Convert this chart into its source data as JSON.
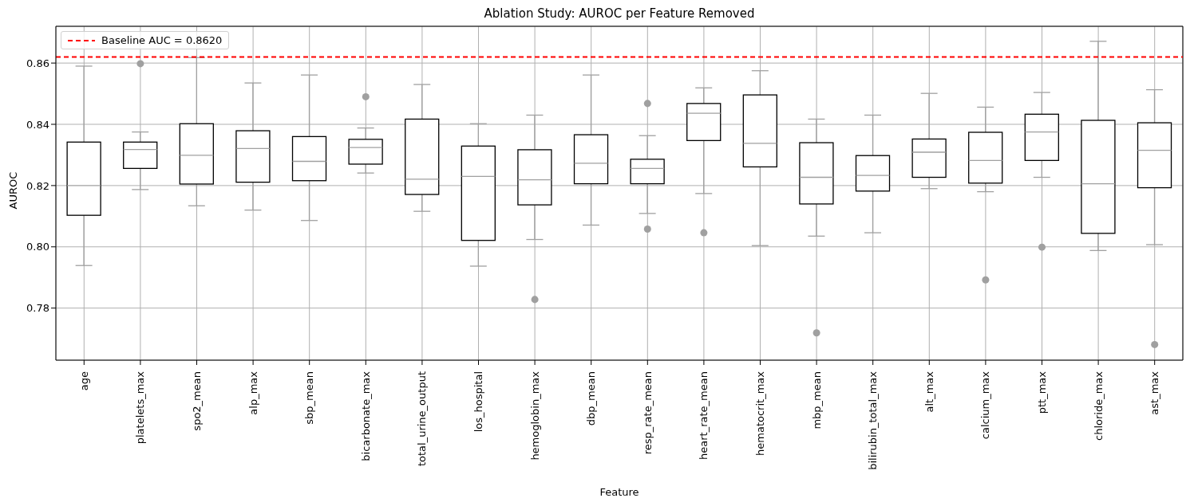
{
  "chart_data": {
    "type": "box",
    "title": "Ablation Study: AUROC per Feature Removed",
    "xlabel": "Feature",
    "ylabel": "AUROC",
    "categories": [
      "age",
      "platelets_max",
      "spo2_mean",
      "alp_max",
      "sbp_mean",
      "bicarbonate_max",
      "total_urine_output",
      "los_hospital",
      "hemoglobin_max",
      "dbp_mean",
      "resp_rate_mean",
      "heart_rate_mean",
      "hematocrit_max",
      "mbp_mean",
      "bilirubin_total_max",
      "alt_max",
      "calcium_max",
      "ptt_max",
      "chloride_max",
      "ast_max"
    ],
    "color": "#000000",
    "boxes": [
      {
        "low": 0.7939,
        "q1": 0.8103,
        "median": 0.82,
        "q3": 0.8342,
        "high": 0.859
      },
      {
        "low": 0.8187,
        "q1": 0.8256,
        "median": 0.8318,
        "q3": 0.8342,
        "high": 0.8375,
        "outliers": [
          0.8598
        ]
      },
      {
        "low": 0.8134,
        "q1": 0.8205,
        "median": 0.8299,
        "q3": 0.8402,
        "high": 0.8618
      },
      {
        "low": 0.812,
        "q1": 0.8211,
        "median": 0.8321,
        "q3": 0.8379,
        "high": 0.8535
      },
      {
        "low": 0.8086,
        "q1": 0.8216,
        "median": 0.8279,
        "q3": 0.836,
        "high": 0.8561
      },
      {
        "low": 0.8241,
        "q1": 0.827,
        "median": 0.8324,
        "q3": 0.8351,
        "high": 0.8388,
        "outliers": [
          0.849
        ]
      },
      {
        "low": 0.8116,
        "q1": 0.8171,
        "median": 0.8221,
        "q3": 0.8417,
        "high": 0.853
      },
      {
        "low": 0.7937,
        "q1": 0.8021,
        "median": 0.823,
        "q3": 0.8329,
        "high": 0.8402
      },
      {
        "low": 0.8024,
        "q1": 0.8137,
        "median": 0.8219,
        "q3": 0.8317,
        "high": 0.843,
        "outliers": [
          0.7828
        ]
      },
      {
        "low": 0.8071,
        "q1": 0.8206,
        "median": 0.8273,
        "q3": 0.8366,
        "high": 0.8561
      },
      {
        "low": 0.8109,
        "q1": 0.8206,
        "median": 0.8256,
        "q3": 0.8286,
        "high": 0.8363,
        "outliers": [
          0.8468,
          0.8058
        ]
      },
      {
        "low": 0.8174,
        "q1": 0.8347,
        "median": 0.8436,
        "q3": 0.8468,
        "high": 0.8519,
        "outliers": [
          0.8046
        ]
      },
      {
        "low": 0.8004,
        "q1": 0.8261,
        "median": 0.8338,
        "q3": 0.8496,
        "high": 0.8575
      },
      {
        "low": 0.8035,
        "q1": 0.814,
        "median": 0.8227,
        "q3": 0.834,
        "high": 0.8417,
        "outliers": [
          0.7719
        ]
      },
      {
        "low": 0.8046,
        "q1": 0.8182,
        "median": 0.8233,
        "q3": 0.8298,
        "high": 0.843
      },
      {
        "low": 0.819,
        "q1": 0.8227,
        "median": 0.8309,
        "q3": 0.8352,
        "high": 0.8501
      },
      {
        "low": 0.818,
        "q1": 0.8208,
        "median": 0.8282,
        "q3": 0.8374,
        "high": 0.8456,
        "outliers": [
          0.7892
        ]
      },
      {
        "low": 0.8227,
        "q1": 0.8282,
        "median": 0.8375,
        "q3": 0.8433,
        "high": 0.8504,
        "outliers": [
          0.7999
        ]
      },
      {
        "low": 0.7988,
        "q1": 0.8044,
        "median": 0.8206,
        "q3": 0.8413,
        "high": 0.8671
      },
      {
        "low": 0.8007,
        "q1": 0.8193,
        "median": 0.8315,
        "q3": 0.8405,
        "high": 0.8513,
        "outliers": [
          0.7681
        ]
      }
    ],
    "ylim": [
      0.763,
      0.872
    ],
    "yticks": [
      0.78,
      {
        "value": 0.8,
        "label": "0.80"
      },
      0.82,
      0.84,
      0.86
    ],
    "ref_lines": [
      {
        "axis": "y",
        "value": 0.862,
        "label": "Baseline AUC = 0.8620",
        "color": "#ff0000",
        "line_style": "dashed"
      }
    ],
    "grid": true,
    "legend": "top left"
  }
}
